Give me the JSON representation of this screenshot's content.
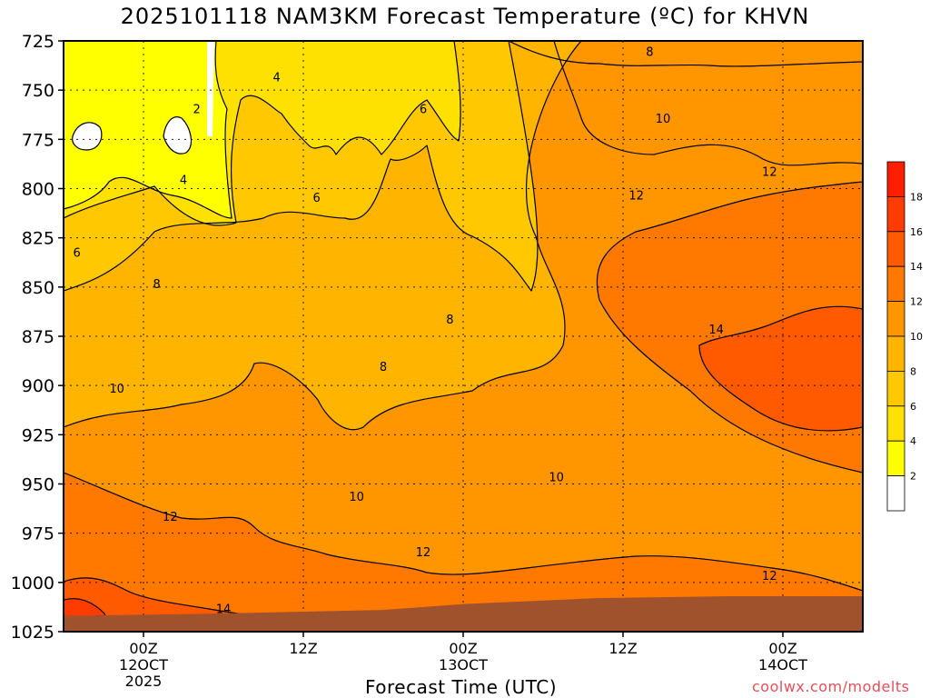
{
  "chart_data": {
    "type": "heatmap",
    "title": "2025101118 NAM3KM Forecast Temperature (ºC) for KHVN",
    "xlabel": "Forecast Time (UTC)",
    "ylabel": "",
    "credit": "coolwx.com/modelts",
    "yaxis": {
      "unit": "hPa",
      "ticks": [
        725,
        750,
        775,
        800,
        825,
        850,
        875,
        900,
        925,
        950,
        975,
        1000,
        1025
      ],
      "ylim": [
        1025,
        725
      ]
    },
    "xaxis": {
      "unit": "forecast hours from 2025-10-11 18Z",
      "xlim": [
        0,
        60
      ],
      "ticks": [
        {
          "hour": 6,
          "lines": [
            "00Z",
            "12OCT",
            "2025"
          ]
        },
        {
          "hour": 18,
          "lines": [
            "12Z"
          ]
        },
        {
          "hour": 30,
          "lines": [
            "00Z",
            "13OCT"
          ]
        },
        {
          "hour": 42,
          "lines": [
            "12Z"
          ]
        },
        {
          "hour": 54,
          "lines": [
            "00Z",
            "14OCT"
          ]
        }
      ]
    },
    "colorbar": {
      "levels": [
        2,
        4,
        6,
        8,
        10,
        12,
        14,
        16,
        18
      ],
      "bins": [
        {
          "from": null,
          "to": 2,
          "color": "#ffffff"
        },
        {
          "from": 2,
          "to": 4,
          "color": "#ffff00"
        },
        {
          "from": 4,
          "to": 6,
          "color": "#ffe100"
        },
        {
          "from": 6,
          "to": 8,
          "color": "#ffc800"
        },
        {
          "from": 8,
          "to": 10,
          "color": "#ffb400"
        },
        {
          "from": 10,
          "to": 12,
          "color": "#ff9600"
        },
        {
          "from": 12,
          "to": 14,
          "color": "#ff7800"
        },
        {
          "from": 14,
          "to": 16,
          "color": "#ff5a00"
        },
        {
          "from": 16,
          "to": 18,
          "color": "#ff3c00"
        },
        {
          "from": 18,
          "to": null,
          "color": "#ff1e00"
        }
      ]
    },
    "surface_color": "#a0522d",
    "surface_pressure": [
      {
        "hour": 0,
        "hPa": 1017
      },
      {
        "hour": 10,
        "hPa": 1016
      },
      {
        "hour": 24,
        "hPa": 1014
      },
      {
        "hour": 30,
        "hPa": 1011
      },
      {
        "hour": 40,
        "hPa": 1008
      },
      {
        "hour": 50,
        "hPa": 1007
      },
      {
        "hour": 60,
        "hPa": 1007
      }
    ],
    "contour_labels": [
      {
        "text": "2",
        "hour": 10.0,
        "hPa": 760
      },
      {
        "text": "4",
        "hour": 16.0,
        "hPa": 744
      },
      {
        "text": "4",
        "hour": 9.0,
        "hPa": 796
      },
      {
        "text": "6",
        "hour": 27.0,
        "hPa": 760
      },
      {
        "text": "6",
        "hour": 19.0,
        "hPa": 805
      },
      {
        "text": "6",
        "hour": 1.0,
        "hPa": 833
      },
      {
        "text": "8",
        "hour": 44.0,
        "hPa": 731
      },
      {
        "text": "8",
        "hour": 7.0,
        "hPa": 849
      },
      {
        "text": "8",
        "hour": 29.0,
        "hPa": 867
      },
      {
        "text": "8",
        "hour": 24.0,
        "hPa": 891
      },
      {
        "text": "10",
        "hour": 45.0,
        "hPa": 765
      },
      {
        "text": "10",
        "hour": 4.0,
        "hPa": 902
      },
      {
        "text": "10",
        "hour": 37.0,
        "hPa": 947
      },
      {
        "text": "10",
        "hour": 22.0,
        "hPa": 957
      },
      {
        "text": "12",
        "hour": 43.0,
        "hPa": 804
      },
      {
        "text": "12",
        "hour": 53.0,
        "hPa": 792
      },
      {
        "text": "12",
        "hour": 8.0,
        "hPa": 967
      },
      {
        "text": "12",
        "hour": 27.0,
        "hPa": 985
      },
      {
        "text": "12",
        "hour": 53.0,
        "hPa": 997
      },
      {
        "text": "14",
        "hour": 49.0,
        "hPa": 872
      },
      {
        "text": "14",
        "hour": 12.0,
        "hPa": 1014
      }
    ]
  }
}
